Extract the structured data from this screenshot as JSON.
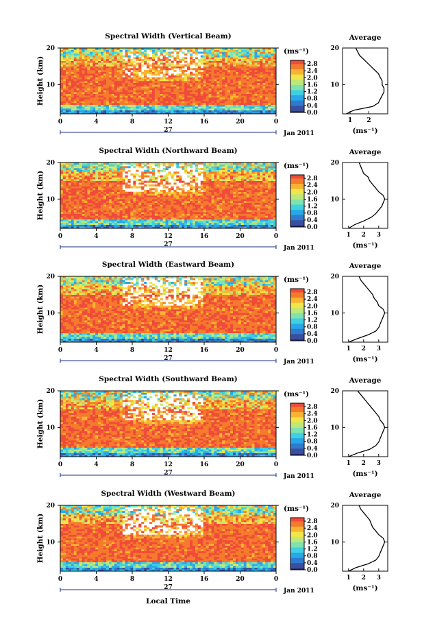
{
  "chart_data": {
    "type": "heatmap",
    "colormap": [
      "#2b2a6e",
      "#3a4fa0",
      "#2f7bd0",
      "#28a8e6",
      "#3fd0e2",
      "#7fe3b0",
      "#bfe87a",
      "#f0e64a",
      "#f8b431",
      "#f57a2c",
      "#ef4b3a"
    ],
    "colorbar": {
      "unit": "(ms⁻¹)",
      "ticks": [
        "2.8",
        "2.4",
        "2.0",
        "1.6",
        "1.2",
        "0.8",
        "0.4",
        "0.0"
      ],
      "range": [
        0,
        3.0
      ]
    },
    "x_ticks": [
      "0",
      "4",
      "8",
      "12",
      "16",
      "20",
      "0"
    ],
    "x_range": [
      0,
      24
    ],
    "y_ticks": [
      "20",
      "10"
    ],
    "y_range": [
      2,
      20
    ],
    "ylabel": "Height (km)",
    "day_label": "27",
    "month_label": "Jan 2011",
    "xlabel": "Local Time",
    "avg_title": "Average",
    "avg_xlabel": "(ms⁻¹)",
    "panels": [
      {
        "title": "Spectral Width (Vertical Beam)",
        "avg_ticks": [
          "1",
          "2"
        ],
        "avg_range": [
          0.6,
          3.0
        ],
        "avg_profile": {
          "heights": [
            2,
            3,
            4,
            5,
            6,
            7,
            8,
            9,
            10,
            11,
            12,
            13,
            14,
            15,
            16,
            17,
            18,
            19,
            20
          ],
          "values": [
            0.8,
            1.2,
            2.2,
            2.5,
            2.6,
            2.7,
            2.8,
            2.8,
            2.7,
            2.7,
            2.6,
            2.5,
            2.3,
            2.1,
            1.9,
            1.7,
            1.5,
            1.4,
            1.3
          ]
        }
      },
      {
        "title": "Spectral Width (Northward Beam)",
        "avg_ticks": [
          "1",
          "2",
          "3"
        ],
        "avg_range": [
          0.6,
          3.6
        ],
        "avg_profile": {
          "heights": [
            2,
            3,
            4,
            5,
            6,
            7,
            8,
            9,
            10,
            11,
            12,
            13,
            14,
            15,
            16,
            17,
            18,
            19,
            20
          ],
          "values": [
            1.0,
            1.4,
            2.0,
            2.5,
            2.8,
            3.0,
            3.2,
            3.3,
            3.4,
            3.3,
            3.0,
            2.8,
            2.6,
            2.4,
            2.3,
            2.0,
            1.9,
            1.8,
            1.7
          ]
        }
      },
      {
        "title": "Spectral Width (Eastward Beam)",
        "avg_ticks": [
          "1",
          "2",
          "3"
        ],
        "avg_range": [
          0.6,
          3.6
        ],
        "avg_profile": {
          "heights": [
            2,
            3,
            4,
            5,
            6,
            7,
            8,
            9,
            10,
            11,
            12,
            13,
            14,
            15,
            16,
            17,
            18,
            19,
            20
          ],
          "values": [
            1.0,
            1.6,
            2.3,
            2.8,
            3.0,
            3.1,
            3.2,
            3.3,
            3.4,
            3.3,
            3.0,
            2.9,
            2.7,
            2.6,
            2.4,
            2.2,
            2.0,
            1.8,
            1.7
          ]
        }
      },
      {
        "title": "Spectral Width (Southward Beam)",
        "avg_ticks": [
          "1",
          "2",
          "3"
        ],
        "avg_range": [
          0.6,
          3.6
        ],
        "avg_profile": {
          "heights": [
            2,
            3,
            4,
            5,
            6,
            7,
            8,
            9,
            10,
            11,
            12,
            13,
            14,
            15,
            16,
            17,
            18,
            19,
            20
          ],
          "values": [
            1.0,
            1.6,
            2.4,
            2.8,
            3.0,
            3.1,
            3.2,
            3.3,
            3.4,
            3.3,
            3.1,
            3.0,
            2.8,
            2.6,
            2.4,
            2.2,
            2.0,
            1.8,
            1.6
          ]
        }
      },
      {
        "title": "Spectral Width (Westward Beam)",
        "avg_ticks": [
          "1",
          "2",
          "3"
        ],
        "avg_range": [
          0.6,
          3.6
        ],
        "avg_profile": {
          "heights": [
            2,
            3,
            4,
            5,
            6,
            7,
            8,
            9,
            10,
            11,
            12,
            13,
            14,
            15,
            16,
            17,
            18,
            19,
            20
          ],
          "values": [
            1.0,
            1.5,
            2.3,
            2.8,
            3.0,
            3.1,
            3.2,
            3.3,
            3.4,
            3.3,
            3.0,
            2.8,
            2.6,
            2.5,
            2.4,
            2.2,
            2.0,
            1.8,
            1.7
          ]
        }
      }
    ]
  }
}
